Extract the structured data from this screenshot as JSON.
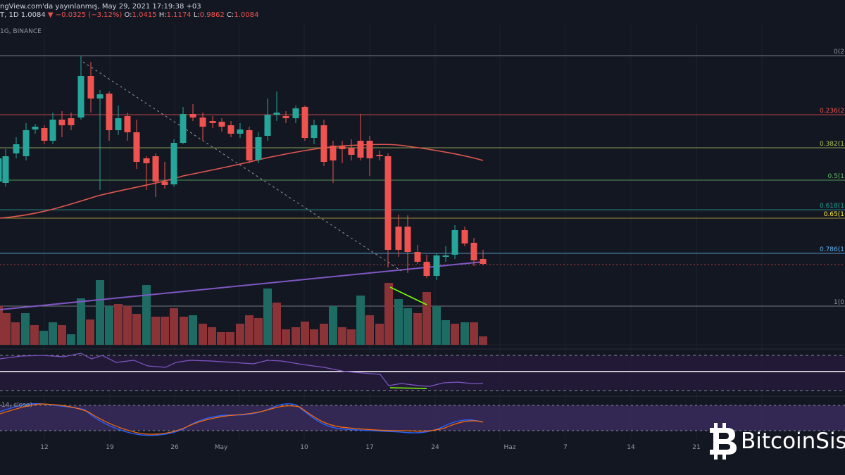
{
  "header": {
    "source_text": "ngView.com'da yayınlanmış, May 29, 2021 17:19:38 +03"
  },
  "ohlc": {
    "prefix": "T, 1D",
    "last": "1.0084",
    "change": "▼ −0.0325 (−3.12%)",
    "o_label": "O:",
    "o_value": "1.0415",
    "h_label": "H:",
    "h_value": "1.1174",
    "l_label": "L:",
    "l_value": "0.9862",
    "c_label": "C:",
    "c_value": "1.0084"
  },
  "symbol": {
    "text": "1G, BINANCE"
  },
  "oscillator": {
    "label": "14, close)"
  },
  "fib_levels": [
    {
      "label": "0(2",
      "color": "#9598a1"
    },
    {
      "label": "0.236(2",
      "color": "#ef5350"
    },
    {
      "label": "0.382(1",
      "color": "#b0c75f"
    },
    {
      "label": "0.5(1",
      "color": "#66bb6a"
    },
    {
      "label": "0.618(1",
      "color": "#26a69a"
    },
    {
      "label": "0.65(1",
      "color": "#ffeb3b"
    },
    {
      "label": "0.786(1",
      "color": "#64b5f6"
    },
    {
      "label": "1(0",
      "color": "#9598a1"
    }
  ],
  "x_axis": [
    "12",
    "19",
    "26",
    "May",
    "10",
    "17",
    "24",
    "Haz",
    "7",
    "14",
    "21"
  ],
  "colors": {
    "bull": "#26a69a",
    "bear": "#ef5350",
    "vol_bull": "#1e6b63",
    "vol_bear": "#8b3336",
    "ma": "#e0574f",
    "trendline": "#7e57c2",
    "divergence": "#76ff03",
    "golden_line": "#f5c542"
  },
  "watermark": {
    "brand": "BitcoinSis",
    "logo_icon": "bitcoin-logo-icon"
  }
}
